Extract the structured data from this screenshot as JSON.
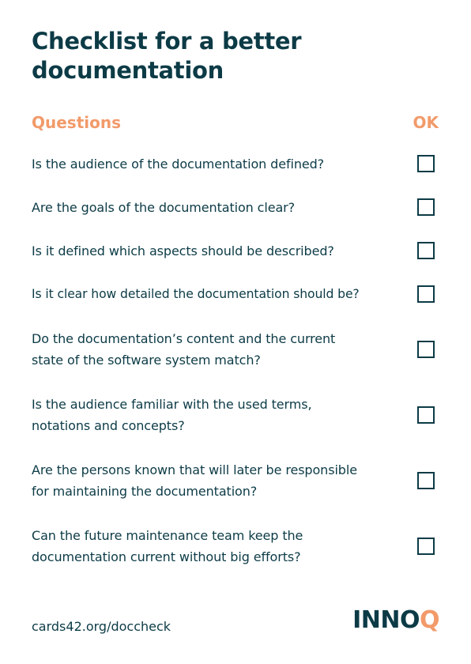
{
  "title": "Checklist for a better documentation",
  "headers": {
    "questions": "Questions",
    "ok": "OK"
  },
  "questions": [
    {
      "line1": "Is the audience of the documentation defined?",
      "line2": ""
    },
    {
      "line1": "Are the goals of the documentation clear?",
      "line2": ""
    },
    {
      "line1": "Is it defined which aspects should be described?",
      "line2": ""
    },
    {
      "line1": "Is it clear how detailed the documentation should be?",
      "line2": ""
    },
    {
      "line1": "Do the documentation’s content and the current",
      "line2": "state of the software system match?"
    },
    {
      "line1": "Is the audience familiar with the used terms,",
      "line2": "notations and concepts?"
    },
    {
      "line1": "Are the persons known that will later be responsible",
      "line2": "for maintaining the documentation?"
    },
    {
      "line1": "Can the future maintenance team keep the",
      "line2": "documentation current without big efforts?"
    }
  ],
  "footer": {
    "url": "cards42.org/doccheck",
    "logo_main": "INNO",
    "logo_last": "Q"
  },
  "colors": {
    "primary": "#0c3b46",
    "accent": "#f29a6a"
  }
}
